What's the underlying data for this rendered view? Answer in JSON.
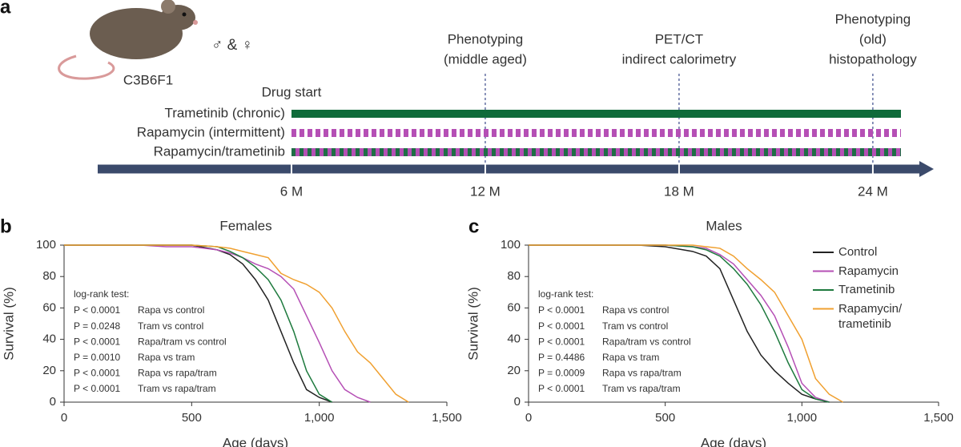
{
  "timeline": {
    "panel_label": "a",
    "strain": "C3B6F1",
    "sexes": "♂ & ♀",
    "drug_start": {
      "label": "Drug start",
      "month": 6
    },
    "ticks": [
      {
        "value": 6,
        "label": "6 M"
      },
      {
        "value": 12,
        "label": "12 M"
      },
      {
        "value": 18,
        "label": "18 M"
      },
      {
        "value": 24,
        "label": "24 M"
      }
    ],
    "events": [
      {
        "lines": [
          "Phenotyping",
          "(middle aged)"
        ],
        "month": 12
      },
      {
        "lines": [
          "PET/CT",
          "indirect calorimetry"
        ],
        "month": 18
      },
      {
        "lines": [
          "Phenotyping",
          "(old)",
          "histopathology"
        ],
        "month": 24
      }
    ],
    "regimens": [
      {
        "label": "Trametinib (chronic)",
        "pattern": "solid",
        "colors": [
          "#0f6b3a"
        ]
      },
      {
        "label": "Rapamycin (intermittent)",
        "pattern": "dashed",
        "colors": [
          "#b54fb5"
        ]
      },
      {
        "label": "Rapamycin/trametinib",
        "pattern": "alternating",
        "colors": [
          "#b54fb5",
          "#1e6e45"
        ]
      }
    ]
  },
  "chart_data": [
    {
      "type": "line",
      "panel_label": "b",
      "title": "Females",
      "x_label": "Age (days)",
      "y_label": "Survival (%)",
      "xlim": [
        0,
        1500
      ],
      "ylim": [
        0,
        100
      ],
      "xticks": [
        0,
        500,
        {
          "value": 1000,
          "label": "1,000"
        },
        {
          "value": 1500,
          "label": "1,500"
        }
      ],
      "yticks": [
        0,
        20,
        40,
        60,
        80,
        100
      ],
      "x": [
        0,
        300,
        400,
        500,
        600,
        650,
        700,
        750,
        800,
        850,
        900,
        950,
        1000,
        1050,
        1100,
        1150,
        1200,
        1250,
        1300,
        1350
      ],
      "series": [
        {
          "color": "#222222",
          "values": [
            100,
            100,
            100,
            100,
            97,
            94,
            88,
            78,
            65,
            45,
            25,
            8,
            3,
            0,
            null,
            null,
            null,
            null,
            null,
            null
          ]
        },
        {
          "color": "#b54fb5",
          "values": [
            100,
            100,
            99,
            99,
            97,
            95,
            92,
            88,
            85,
            80,
            72,
            55,
            38,
            20,
            8,
            3,
            0,
            null,
            null,
            null
          ]
        },
        {
          "color": "#1e7a3e",
          "values": [
            100,
            100,
            100,
            100,
            99,
            96,
            92,
            86,
            78,
            65,
            45,
            20,
            5,
            0,
            null,
            null,
            null,
            null,
            null,
            null
          ]
        },
        {
          "color": "#f0a030",
          "values": [
            100,
            100,
            100,
            100,
            99,
            98,
            96,
            94,
            92,
            82,
            78,
            75,
            70,
            60,
            45,
            32,
            25,
            15,
            5,
            0
          ]
        }
      ],
      "stats_title": "log-rank test:",
      "stats": [
        {
          "p": "P < 0.0001",
          "comparison": "Rapa vs control"
        },
        {
          "p": "P = 0.0248",
          "comparison": "Tram vs control"
        },
        {
          "p": "P < 0.0001",
          "comparison": "Rapa/tram vs control"
        },
        {
          "p": "P = 0.0010",
          "comparison": "Rapa vs tram"
        },
        {
          "p": "P < 0.0001",
          "comparison": "Rapa vs rapa/tram"
        },
        {
          "p": "P < 0.0001",
          "comparison": "Tram vs rapa/tram"
        }
      ]
    },
    {
      "type": "line",
      "panel_label": "c",
      "title": "Males",
      "x_label": "Age (days)",
      "y_label": "Survival (%)",
      "xlim": [
        0,
        1500
      ],
      "ylim": [
        0,
        100
      ],
      "xticks": [
        0,
        500,
        {
          "value": 1000,
          "label": "1,000"
        },
        {
          "value": 1500,
          "label": "1,500"
        }
      ],
      "yticks": [
        0,
        20,
        40,
        60,
        80,
        100
      ],
      "legend": "upper right",
      "x": [
        0,
        300,
        400,
        500,
        600,
        650,
        700,
        750,
        800,
        850,
        900,
        950,
        1000,
        1050,
        1100,
        1150
      ],
      "series": [
        {
          "name": "Control",
          "color": "#222222",
          "values": [
            100,
            100,
            100,
            99,
            96,
            93,
            85,
            65,
            45,
            30,
            20,
            12,
            5,
            2,
            0,
            null
          ]
        },
        {
          "name": "Rapamycin",
          "color": "#b54fb5",
          "values": [
            100,
            100,
            100,
            100,
            99,
            98,
            94,
            88,
            78,
            68,
            55,
            35,
            12,
            3,
            0,
            null
          ]
        },
        {
          "name": "Trametinib",
          "color": "#1e7a3e",
          "values": [
            100,
            100,
            100,
            100,
            99,
            97,
            93,
            85,
            75,
            62,
            45,
            25,
            8,
            2,
            0,
            null
          ]
        },
        {
          "name": "Rapamycin/\ntrametinib",
          "color": "#f0a030",
          "values": [
            100,
            100,
            100,
            100,
            100,
            99,
            98,
            93,
            85,
            78,
            70,
            55,
            40,
            15,
            5,
            0
          ]
        }
      ],
      "stats_title": "log-rank test:",
      "stats": [
        {
          "p": "P < 0.0001",
          "comparison": "Rapa vs control"
        },
        {
          "p": "P < 0.0001",
          "comparison": "Tram vs control"
        },
        {
          "p": "P < 0.0001",
          "comparison": "Rapa/tram vs control"
        },
        {
          "p": "P = 0.4486",
          "comparison": "Rapa vs tram"
        },
        {
          "p": "P = 0.0009",
          "comparison": "Rapa vs rapa/tram"
        },
        {
          "p": "P < 0.0001",
          "comparison": "Tram vs rapa/tram"
        }
      ]
    }
  ]
}
